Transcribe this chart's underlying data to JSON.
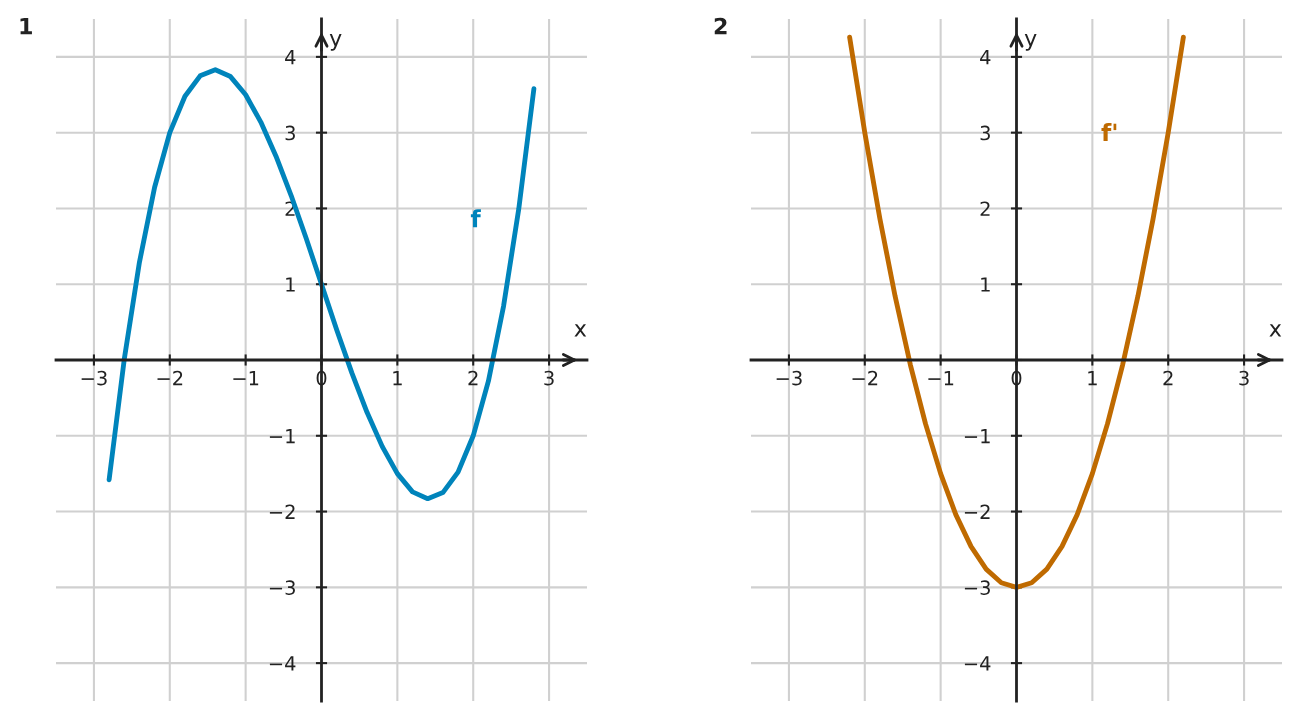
{
  "chart_data": [
    {
      "type": "line",
      "title": "1",
      "xlabel": "x",
      "ylabel": "y",
      "xlim": [
        -3.5,
        3.5
      ],
      "ylim": [
        -4.5,
        4.5
      ],
      "xticks": [
        {
          "value": -3,
          "label": "−3"
        },
        {
          "value": -2,
          "label": "−2"
        },
        {
          "value": -1,
          "label": "−1"
        },
        {
          "value": 0,
          "label": "0"
        },
        1,
        2,
        3
      ],
      "yticks": [
        {
          "value": -4,
          "label": "−4"
        },
        {
          "value": -3,
          "label": "−3"
        },
        {
          "value": -2,
          "label": "−2"
        },
        {
          "value": -1,
          "label": "−1"
        },
        {
          "value": 0,
          "label": null
        },
        1,
        2,
        3,
        4
      ],
      "grid": true,
      "legend": false,
      "series": [
        {
          "name": "f",
          "color": "#0084bb",
          "x": [
            -2.8,
            -2.6,
            -2.4,
            -2.2,
            -2.0,
            -1.8,
            -1.6,
            -1.4,
            -1.2,
            -1.0,
            -0.8,
            -0.6,
            -0.4,
            -0.2,
            0,
            0.2,
            0.4,
            0.6,
            0.8,
            1.0,
            1.2,
            1.4,
            1.6,
            1.8,
            2.0,
            2.2,
            2.4,
            2.6,
            2.8
          ],
          "values": [
            -1.58,
            0.01,
            1.29,
            2.28,
            3.0,
            3.48,
            3.75,
            3.83,
            3.74,
            3.5,
            3.14,
            2.69,
            2.17,
            1.6,
            1.0,
            0.4,
            -0.17,
            -0.69,
            -1.14,
            -1.5,
            -1.74,
            -1.83,
            -1.75,
            -1.48,
            -1.0,
            -0.28,
            0.71,
            1.99,
            3.58
          ]
        }
      ]
    },
    {
      "type": "line",
      "title": "2",
      "xlabel": "x",
      "ylabel": "y",
      "xlim": [
        -3.5,
        3.5
      ],
      "ylim": [
        -4.5,
        4.5
      ],
      "xticks": [
        {
          "value": -3,
          "label": "−3"
        },
        {
          "value": -2,
          "label": "−2"
        },
        {
          "value": -1,
          "label": "−1"
        },
        {
          "value": 0,
          "label": "0"
        },
        1,
        2,
        3
      ],
      "yticks": [
        {
          "value": -4,
          "label": "−4"
        },
        {
          "value": -3,
          "label": "−3"
        },
        {
          "value": -2,
          "label": "−2"
        },
        {
          "value": -1,
          "label": "−1"
        },
        {
          "value": 0,
          "label": null
        },
        1,
        2,
        3,
        4
      ],
      "grid": true,
      "legend": false,
      "series": [
        {
          "name": "f'",
          "color": "#bf6a00",
          "x": [
            -2.2,
            -2.0,
            -1.8,
            -1.6,
            -1.4,
            -1.2,
            -1.0,
            -0.8,
            -0.6,
            -0.4,
            -0.2,
            0,
            0.2,
            0.4,
            0.6,
            0.8,
            1.0,
            1.2,
            1.4,
            1.6,
            1.8,
            2.0,
            2.2
          ],
          "values": [
            4.26,
            3.0,
            1.86,
            0.84,
            -0.06,
            -0.84,
            -1.5,
            -2.04,
            -2.46,
            -2.76,
            -2.94,
            -3.0,
            -2.94,
            -2.76,
            -2.46,
            -2.04,
            -1.5,
            -0.84,
            -0.06,
            0.84,
            1.86,
            3.0,
            4.26
          ]
        }
      ]
    }
  ]
}
